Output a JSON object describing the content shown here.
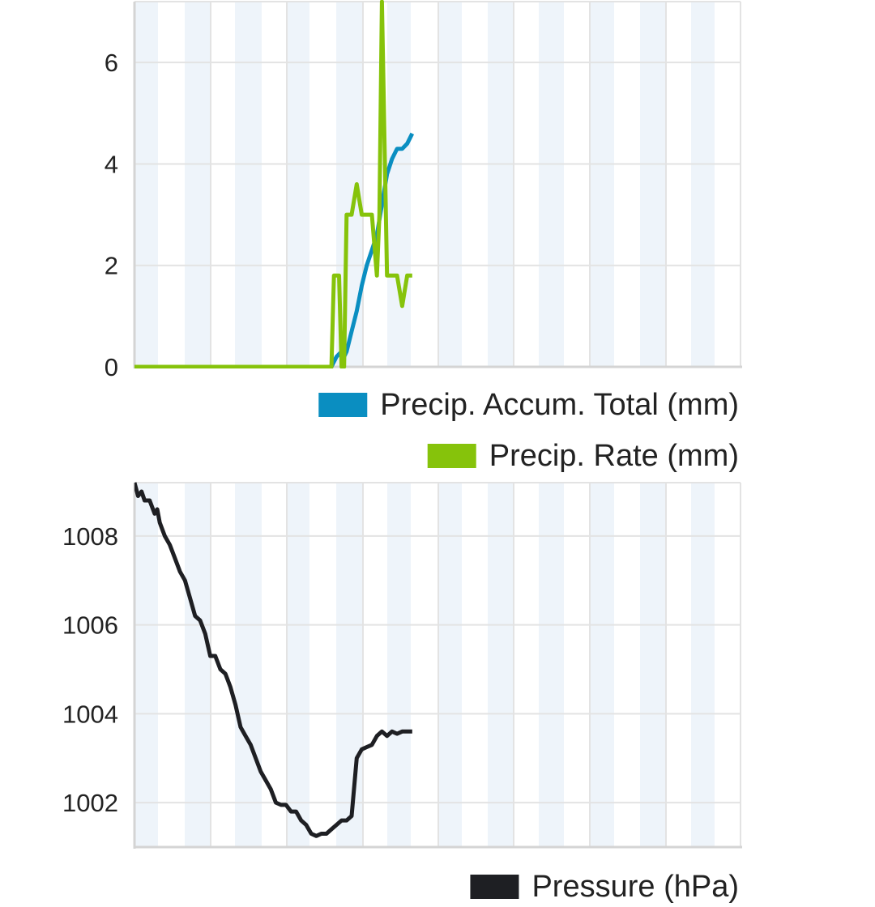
{
  "colors": {
    "accum": "#0a8ec1",
    "rate": "#86c30b",
    "pressure": "#1e1f23",
    "band": "#eef4fa",
    "grid": "#e3e3e3",
    "axis": "#d4d4d4",
    "text": "#222222"
  },
  "chart_data": [
    {
      "type": "line",
      "title": "",
      "xlabel": "",
      "ylabel": "",
      "ylim": [
        0,
        7.2
      ],
      "y_ticks": [
        0,
        2,
        4,
        6
      ],
      "x_range": [
        0,
        120
      ],
      "grid": true,
      "legend_position": "bottom-right",
      "series": [
        {
          "name": "Precip. Accum. Total (mm)",
          "color_key": "accum",
          "x": [
            0,
            39,
            40,
            41,
            41.5,
            42,
            43,
            44,
            45,
            46,
            47,
            48,
            49,
            50,
            51,
            52,
            53,
            54,
            55
          ],
          "y": [
            0,
            0,
            0.2,
            0.3,
            0.2,
            0.3,
            0.7,
            1.1,
            1.6,
            2.0,
            2.3,
            2.6,
            3.2,
            3.8,
            4.1,
            4.3,
            4.3,
            4.4,
            4.6
          ]
        },
        {
          "name": "Precip. Rate (mm)",
          "color_key": "rate",
          "x": [
            0,
            39,
            39.5,
            40.5,
            41,
            41.5,
            42,
            43,
            44,
            45,
            46,
            47,
            48,
            48.5,
            49,
            50,
            51,
            52,
            53,
            54,
            55
          ],
          "y": [
            0,
            0,
            1.8,
            1.8,
            0,
            0,
            3.0,
            3.0,
            3.6,
            3.0,
            3.0,
            3.0,
            1.8,
            3.0,
            7.2,
            1.8,
            1.8,
            1.8,
            1.2,
            1.8,
            1.8
          ]
        }
      ]
    },
    {
      "type": "line",
      "title": "",
      "xlabel": "",
      "ylabel": "",
      "ylim": [
        1001,
        1009.2
      ],
      "y_ticks": [
        1002,
        1004,
        1006,
        1008
      ],
      "x_range": [
        0,
        120
      ],
      "grid": true,
      "legend_position": "bottom-right",
      "series": [
        {
          "name": "Pressure (hPa)",
          "color_key": "pressure",
          "x": [
            0,
            0.7,
            1.4,
            2,
            3,
            4,
            4.5,
            5,
            6,
            7,
            8,
            9,
            10,
            11,
            12,
            13,
            14,
            15,
            16,
            17,
            18,
            19,
            20,
            21,
            22,
            23,
            24,
            25,
            26,
            27,
            28,
            29,
            30,
            31,
            32,
            33,
            34,
            35,
            36,
            37,
            38,
            39,
            40,
            41,
            42,
            43,
            44,
            45,
            46,
            47,
            48,
            49,
            50,
            51,
            52,
            53,
            53.5,
            54,
            55
          ],
          "y": [
            1009.2,
            1008.9,
            1009.0,
            1008.8,
            1008.8,
            1008.5,
            1008.6,
            1008.3,
            1008.0,
            1007.8,
            1007.5,
            1007.2,
            1007.0,
            1006.6,
            1006.2,
            1006.1,
            1005.8,
            1005.3,
            1005.3,
            1005.0,
            1004.9,
            1004.6,
            1004.2,
            1003.7,
            1003.5,
            1003.3,
            1003.0,
            1002.7,
            1002.5,
            1002.3,
            1002.0,
            1001.95,
            1001.95,
            1001.8,
            1001.8,
            1001.6,
            1001.5,
            1001.3,
            1001.25,
            1001.3,
            1001.3,
            1001.4,
            1001.5,
            1001.6,
            1001.6,
            1001.7,
            1003.0,
            1003.2,
            1003.25,
            1003.3,
            1003.5,
            1003.6,
            1003.5,
            1003.6,
            1003.55,
            1003.6,
            1003.6,
            1003.6,
            1003.6
          ]
        }
      ]
    }
  ]
}
